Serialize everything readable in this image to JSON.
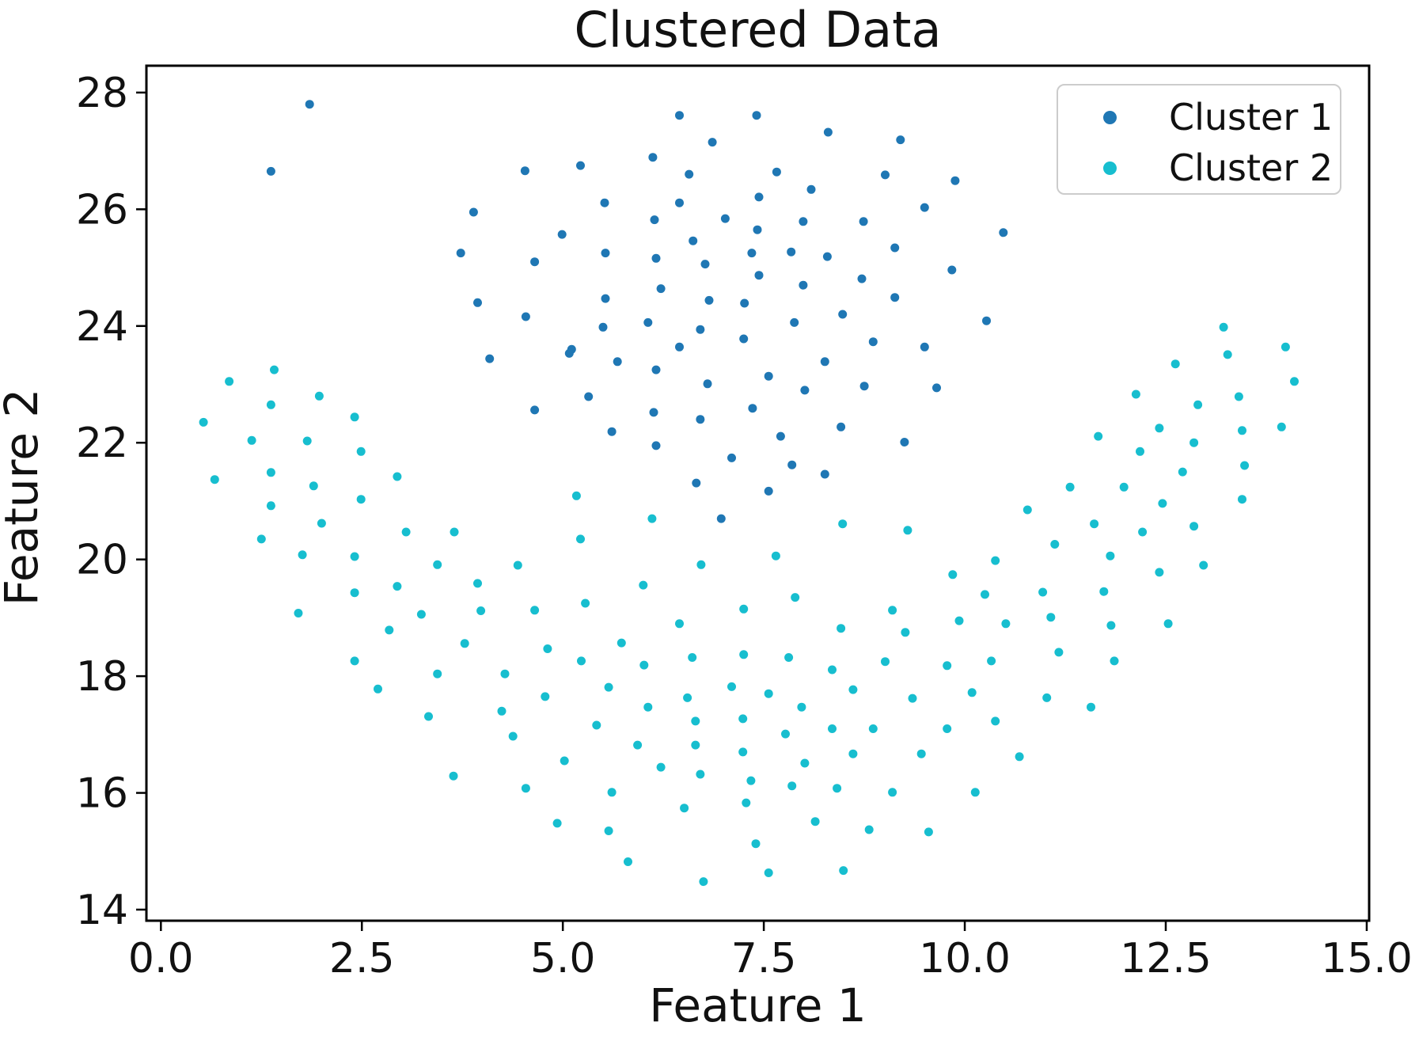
{
  "chart_data": {
    "type": "scatter",
    "title": "Clustered Data",
    "xlabel": "Feature 1",
    "ylabel": "Feature 2",
    "xlim": [
      -0.18,
      15.03
    ],
    "ylim": [
      13.81,
      28.46
    ],
    "grid": false,
    "xticks": {
      "values": [
        0,
        2.5,
        5,
        7.5,
        10,
        12.5,
        15
      ],
      "labels": [
        "0.0",
        "2.5",
        "5.0",
        "7.5",
        "10.0",
        "12.5",
        "15.0"
      ]
    },
    "yticks": {
      "values": [
        14,
        16,
        18,
        20,
        22,
        24,
        26,
        28
      ],
      "labels": [
        "14",
        "16",
        "18",
        "20",
        "22",
        "24",
        "26",
        "28"
      ]
    },
    "axis_color": "#000000",
    "background": "#ffffff",
    "legend": {
      "position": "upper right",
      "entries": [
        {
          "label": "Cluster 1",
          "color": "#1f77b4"
        },
        {
          "label": "Cluster 2",
          "color": "#17becf"
        }
      ]
    },
    "series": [
      {
        "name": "Cluster 1",
        "color": "#1f77b4",
        "marker_radius": 5.5,
        "points": [
          [
            1.85,
            27.8
          ],
          [
            1.37,
            26.65
          ],
          [
            6.45,
            27.61
          ],
          [
            7.41,
            27.61
          ],
          [
            6.86,
            27.15
          ],
          [
            6.12,
            26.89
          ],
          [
            4.53,
            26.66
          ],
          [
            5.22,
            26.75
          ],
          [
            6.57,
            26.6
          ],
          [
            3.89,
            25.95
          ],
          [
            5.52,
            26.11
          ],
          [
            6.45,
            26.11
          ],
          [
            7.44,
            26.21
          ],
          [
            6.14,
            25.82
          ],
          [
            7.02,
            25.84
          ],
          [
            4.99,
            25.57
          ],
          [
            7.42,
            25.65
          ],
          [
            3.73,
            25.25
          ],
          [
            5.53,
            25.25
          ],
          [
            6.16,
            25.16
          ],
          [
            6.62,
            25.46
          ],
          [
            6.77,
            25.06
          ],
          [
            4.65,
            25.1
          ],
          [
            7.35,
            25.25
          ],
          [
            7.44,
            24.87
          ],
          [
            6.22,
            24.64
          ],
          [
            3.94,
            24.4
          ],
          [
            5.53,
            24.47
          ],
          [
            6.82,
            24.44
          ],
          [
            7.26,
            24.39
          ],
          [
            4.54,
            24.16
          ],
          [
            5.5,
            23.98
          ],
          [
            6.06,
            24.06
          ],
          [
            6.71,
            23.94
          ],
          [
            7.25,
            23.78
          ],
          [
            5.11,
            23.6
          ],
          [
            6.45,
            23.64
          ],
          [
            8.3,
            27.32
          ],
          [
            9.2,
            27.19
          ],
          [
            7.66,
            26.64
          ],
          [
            9.01,
            26.59
          ],
          [
            9.88,
            26.49
          ],
          [
            8.09,
            26.34
          ],
          [
            9.5,
            26.03
          ],
          [
            7.99,
            25.79
          ],
          [
            8.74,
            25.79
          ],
          [
            10.48,
            25.6
          ],
          [
            7.84,
            25.27
          ],
          [
            8.29,
            25.19
          ],
          [
            9.13,
            25.34
          ],
          [
            9.84,
            24.96
          ],
          [
            8.72,
            24.81
          ],
          [
            7.99,
            24.7
          ],
          [
            9.13,
            24.49
          ],
          [
            8.48,
            24.2
          ],
          [
            7.88,
            24.06
          ],
          [
            10.27,
            24.09
          ],
          [
            8.86,
            23.73
          ],
          [
            9.5,
            23.64
          ],
          [
            4.09,
            23.44
          ],
          [
            5.08,
            23.53
          ],
          [
            5.68,
            23.39
          ],
          [
            6.16,
            23.25
          ],
          [
            6.8,
            23.01
          ],
          [
            5.32,
            22.79
          ],
          [
            4.65,
            22.56
          ],
          [
            6.13,
            22.52
          ],
          [
            6.71,
            22.4
          ],
          [
            7.36,
            22.59
          ],
          [
            5.61,
            22.19
          ],
          [
            6.16,
            21.95
          ],
          [
            7.1,
            21.74
          ],
          [
            6.66,
            21.31
          ],
          [
            6.97,
            20.7
          ],
          [
            8.26,
            23.39
          ],
          [
            7.56,
            23.14
          ],
          [
            8.01,
            22.9
          ],
          [
            8.75,
            22.97
          ],
          [
            9.65,
            22.94
          ],
          [
            8.46,
            22.27
          ],
          [
            7.71,
            22.11
          ],
          [
            9.25,
            22.01
          ],
          [
            7.85,
            21.62
          ],
          [
            8.26,
            21.46
          ],
          [
            7.56,
            21.17
          ]
        ]
      },
      {
        "name": "Cluster 2",
        "color": "#17becf",
        "marker_radius": 5.5,
        "points": [
          [
            1.41,
            23.25
          ],
          [
            0.85,
            23.05
          ],
          [
            1.97,
            22.8
          ],
          [
            1.37,
            22.65
          ],
          [
            2.41,
            22.44
          ],
          [
            0.53,
            22.35
          ],
          [
            1.13,
            22.04
          ],
          [
            1.82,
            22.03
          ],
          [
            2.49,
            21.85
          ],
          [
            0.67,
            21.37
          ],
          [
            1.37,
            21.49
          ],
          [
            1.9,
            21.26
          ],
          [
            2.49,
            21.03
          ],
          [
            2.94,
            21.42
          ],
          [
            1.37,
            20.92
          ],
          [
            2.0,
            20.62
          ],
          [
            3.05,
            20.47
          ],
          [
            1.25,
            20.35
          ],
          [
            1.76,
            20.08
          ],
          [
            2.41,
            20.05
          ],
          [
            3.44,
            19.91
          ],
          [
            2.41,
            19.43
          ],
          [
            2.94,
            19.54
          ],
          [
            1.71,
            19.08
          ],
          [
            3.24,
            19.06
          ],
          [
            2.84,
            18.79
          ],
          [
            3.65,
            20.47
          ],
          [
            5.17,
            21.09
          ],
          [
            6.11,
            20.7
          ],
          [
            5.22,
            20.35
          ],
          [
            4.44,
            19.9
          ],
          [
            3.94,
            19.59
          ],
          [
            6.0,
            19.56
          ],
          [
            6.72,
            19.91
          ],
          [
            3.98,
            19.12
          ],
          [
            4.65,
            19.13
          ],
          [
            5.28,
            19.25
          ],
          [
            6.45,
            18.9
          ],
          [
            7.25,
            19.15
          ],
          [
            11.31,
            21.24
          ],
          [
            10.78,
            20.85
          ],
          [
            8.48,
            20.61
          ],
          [
            9.29,
            20.5
          ],
          [
            7.65,
            20.06
          ],
          [
            10.38,
            19.98
          ],
          [
            11.12,
            20.26
          ],
          [
            9.85,
            19.74
          ],
          [
            7.89,
            19.35
          ],
          [
            10.25,
            19.4
          ],
          [
            10.97,
            19.44
          ],
          [
            9.1,
            19.13
          ],
          [
            8.46,
            18.82
          ],
          [
            9.93,
            18.95
          ],
          [
            10.51,
            18.9
          ],
          [
            11.07,
            19.01
          ],
          [
            9.26,
            18.75
          ],
          [
            13.22,
            23.98
          ],
          [
            13.99,
            23.64
          ],
          [
            12.62,
            23.35
          ],
          [
            13.27,
            23.51
          ],
          [
            14.1,
            23.05
          ],
          [
            12.13,
            22.83
          ],
          [
            12.9,
            22.65
          ],
          [
            13.41,
            22.79
          ],
          [
            11.66,
            22.11
          ],
          [
            12.42,
            22.25
          ],
          [
            13.45,
            22.21
          ],
          [
            13.94,
            22.27
          ],
          [
            12.85,
            22.0
          ],
          [
            12.18,
            21.85
          ],
          [
            12.71,
            21.5
          ],
          [
            13.48,
            21.61
          ],
          [
            11.98,
            21.24
          ],
          [
            12.46,
            20.96
          ],
          [
            13.45,
            21.03
          ],
          [
            11.61,
            20.61
          ],
          [
            12.21,
            20.47
          ],
          [
            12.85,
            20.57
          ],
          [
            11.81,
            20.06
          ],
          [
            12.42,
            19.78
          ],
          [
            12.97,
            19.9
          ],
          [
            11.73,
            19.45
          ],
          [
            11.82,
            18.87
          ],
          [
            12.53,
            18.9
          ],
          [
            2.41,
            18.26
          ],
          [
            2.7,
            17.78
          ],
          [
            3.44,
            18.04
          ],
          [
            3.33,
            17.31
          ],
          [
            3.64,
            16.29
          ],
          [
            3.78,
            18.56
          ],
          [
            4.81,
            18.47
          ],
          [
            5.73,
            18.57
          ],
          [
            5.23,
            18.26
          ],
          [
            6.01,
            18.19
          ],
          [
            6.61,
            18.32
          ],
          [
            7.25,
            18.37
          ],
          [
            4.28,
            18.04
          ],
          [
            5.57,
            17.81
          ],
          [
            4.78,
            17.65
          ],
          [
            6.55,
            17.63
          ],
          [
            7.1,
            17.82
          ],
          [
            4.24,
            17.4
          ],
          [
            6.06,
            17.47
          ],
          [
            6.65,
            17.23
          ],
          [
            7.24,
            17.27
          ],
          [
            4.38,
            16.97
          ],
          [
            5.42,
            17.16
          ],
          [
            5.93,
            16.82
          ],
          [
            6.65,
            16.82
          ],
          [
            7.24,
            16.7
          ],
          [
            5.02,
            16.55
          ],
          [
            6.22,
            16.44
          ],
          [
            6.71,
            16.32
          ],
          [
            7.34,
            16.21
          ],
          [
            4.54,
            16.08
          ],
          [
            5.61,
            16.01
          ],
          [
            7.28,
            15.83
          ],
          [
            6.51,
            15.74
          ],
          [
            4.93,
            15.48
          ],
          [
            5.57,
            15.35
          ],
          [
            5.81,
            14.82
          ],
          [
            6.75,
            14.48
          ],
          [
            7.4,
            15.13
          ],
          [
            7.81,
            18.32
          ],
          [
            8.35,
            18.11
          ],
          [
            9.01,
            18.25
          ],
          [
            9.78,
            18.18
          ],
          [
            10.33,
            18.26
          ],
          [
            11.17,
            18.41
          ],
          [
            7.56,
            17.7
          ],
          [
            8.61,
            17.77
          ],
          [
            9.35,
            17.62
          ],
          [
            10.09,
            17.72
          ],
          [
            11.02,
            17.63
          ],
          [
            7.97,
            17.47
          ],
          [
            8.35,
            17.1
          ],
          [
            8.86,
            17.1
          ],
          [
            9.78,
            17.1
          ],
          [
            10.38,
            17.23
          ],
          [
            7.77,
            17.01
          ],
          [
            8.61,
            16.67
          ],
          [
            9.46,
            16.67
          ],
          [
            10.68,
            16.62
          ],
          [
            8.01,
            16.51
          ],
          [
            7.85,
            16.12
          ],
          [
            8.41,
            16.08
          ],
          [
            9.1,
            16.01
          ],
          [
            10.13,
            16.01
          ],
          [
            8.14,
            15.51
          ],
          [
            8.81,
            15.37
          ],
          [
            9.55,
            15.33
          ],
          [
            7.56,
            14.63
          ],
          [
            8.49,
            14.67
          ],
          [
            11.86,
            18.26
          ],
          [
            11.57,
            17.47
          ]
        ]
      }
    ]
  }
}
